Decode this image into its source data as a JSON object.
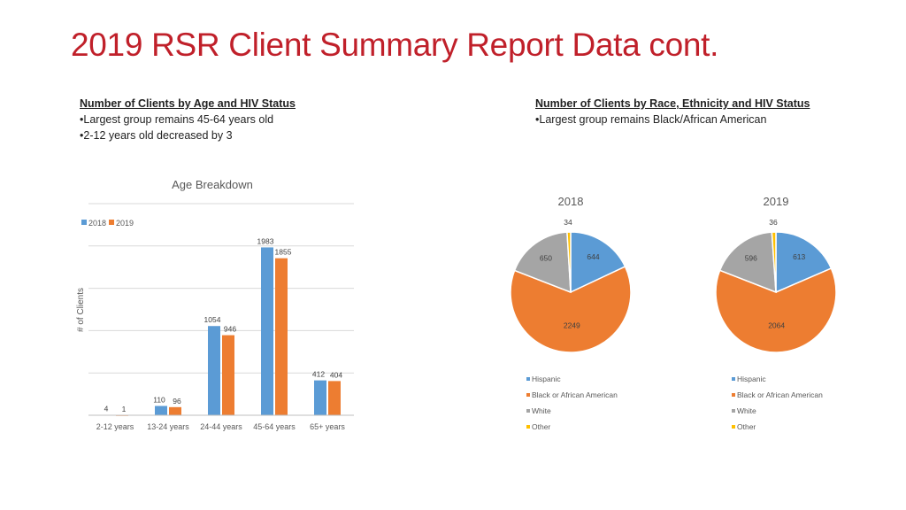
{
  "title": "2019 RSR Client Summary Report Data cont.",
  "age_section": {
    "heading": "Number of Clients by Age and HIV Status",
    "bullets": [
      "•Largest group remains 45-64 years old",
      "•2-12 years old decreased by 3"
    ]
  },
  "race_section": {
    "heading": "Number of Clients by Race, Ethnicity and HIV Status",
    "bullets": [
      "•Largest group remains Black/African American"
    ]
  },
  "colors": {
    "blue": "#5b9bd5",
    "orange": "#ed7d31",
    "gray": "#a5a5a5",
    "yellow": "#ffc000"
  },
  "chart_data": [
    {
      "type": "bar",
      "title": "Age Breakdown",
      "ylabel": "# of Clients",
      "xlabel": "",
      "categories": [
        "2-12 years",
        "13-24 years",
        "24-44 years",
        "45-64 years",
        "65+ years"
      ],
      "series": [
        {
          "name": "2018",
          "values": [
            4,
            110,
            1054,
            1983,
            412
          ],
          "color": "#5b9bd5"
        },
        {
          "name": "2019",
          "values": [
            1,
            96,
            946,
            1855,
            404
          ],
          "color": "#ed7d31"
        }
      ],
      "ylim": [
        0,
        2500
      ],
      "grid": true,
      "legend": "top-left"
    },
    {
      "type": "pie",
      "title": "2018",
      "labels": [
        "Hispanic",
        "Black or African American",
        "White",
        "Other"
      ],
      "values": [
        644,
        2249,
        650,
        34
      ],
      "colors": [
        "#5b9bd5",
        "#ed7d31",
        "#a5a5a5",
        "#ffc000"
      ],
      "legend": "bottom"
    },
    {
      "type": "pie",
      "title": "2019",
      "labels": [
        "Hispanic",
        "Black or African American",
        "White",
        "Other"
      ],
      "values": [
        613,
        2064,
        596,
        36
      ],
      "colors": [
        "#5b9bd5",
        "#ed7d31",
        "#a5a5a5",
        "#ffc000"
      ],
      "legend": "bottom"
    }
  ]
}
